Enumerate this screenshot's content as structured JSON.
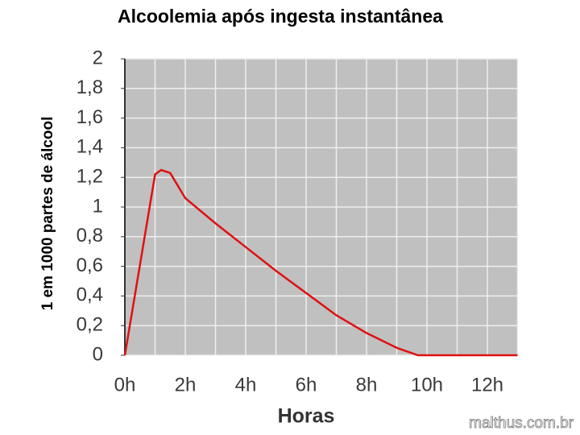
{
  "chart_data": {
    "type": "line",
    "title": "Alcoolemia após ingesta instantânea",
    "x_label": "Horas",
    "y_label": "1 em 1000 partes de álcool",
    "watermark": "malthus.com.br",
    "x": [
      0,
      1,
      1.2,
      1.5,
      2,
      3,
      4,
      5,
      6,
      7,
      8,
      9,
      9.7,
      13
    ],
    "series": [
      {
        "color": "#e01010",
        "values": [
          0,
          1.22,
          1.25,
          1.23,
          1.06,
          0.89,
          0.73,
          0.57,
          0.42,
          0.27,
          0.15,
          0.05,
          0,
          0
        ]
      }
    ],
    "xlim": [
      0,
      13
    ],
    "xticks": [
      {
        "value": 0,
        "label": "0h"
      },
      {
        "value": 2,
        "label": "2h"
      },
      {
        "value": 4,
        "label": "4h"
      },
      {
        "value": 6,
        "label": "6h"
      },
      {
        "value": 8,
        "label": "8h"
      },
      {
        "value": 10,
        "label": "10h"
      },
      {
        "value": 12,
        "label": "12h"
      }
    ],
    "xminorticks": [
      1,
      3,
      5,
      7,
      9,
      11,
      13
    ],
    "ylim": [
      0,
      2
    ],
    "yticks": [
      0,
      {
        "value": 0.2,
        "label": "0,2"
      },
      {
        "value": 0.4,
        "label": "0,4"
      },
      {
        "value": 0.6,
        "label": "0,6"
      },
      {
        "value": 0.8,
        "label": "0,8"
      },
      1,
      {
        "value": 1.2,
        "label": "1,2"
      },
      {
        "value": 1.4,
        "label": "1,4"
      },
      {
        "value": 1.6,
        "label": "1,6"
      },
      {
        "value": 1.8,
        "label": "1,8"
      },
      2
    ],
    "grid": true
  }
}
